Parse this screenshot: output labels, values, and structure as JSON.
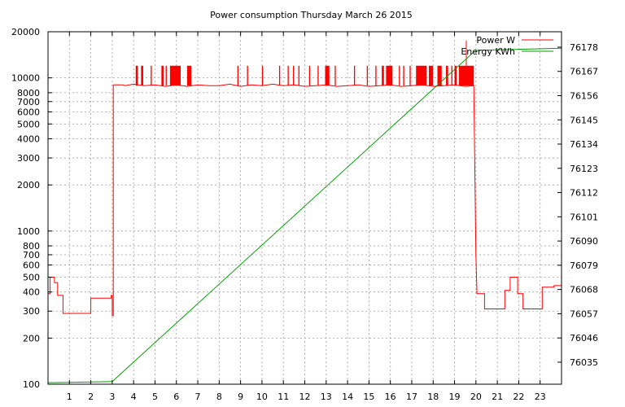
{
  "chart_data": {
    "type": "line",
    "title": "Power consumption Thursday March 26 2015",
    "xlim": [
      0,
      24
    ],
    "x_ticks": [
      1,
      2,
      3,
      4,
      5,
      6,
      7,
      8,
      9,
      10,
      11,
      12,
      13,
      14,
      15,
      16,
      17,
      18,
      19,
      20,
      21,
      22,
      23
    ],
    "y_scale": "log",
    "ylim": [
      100,
      20000
    ],
    "y_ticks": [
      100,
      200,
      300,
      400,
      500,
      600,
      700,
      800,
      1000,
      2000,
      3000,
      4000,
      5000,
      6000,
      7000,
      8000,
      10000,
      20000
    ],
    "y2lim": [
      76025,
      76185
    ],
    "y2_ticks": [
      76035,
      76046,
      76057,
      76068,
      76079,
      76090,
      76101,
      76112,
      76123,
      76134,
      76145,
      76156,
      76167,
      76178
    ],
    "grid": true,
    "legend_position": "top-right",
    "series": [
      {
        "name": "Power W",
        "color": "#ff0000",
        "axis": "left",
        "x": [
          0,
          0.1,
          0.1,
          0.3,
          0.3,
          0.45,
          0.45,
          0.7,
          0.7,
          2.0,
          2.0,
          2.95,
          2.95,
          3.0,
          3.0,
          3.05,
          3.05,
          3.5,
          3.6,
          4.0,
          4.5,
          5.0,
          5.5,
          6.0,
          6.5,
          7.0,
          7.5,
          8.0,
          8.5,
          9.0,
          9.5,
          10.0,
          10.5,
          11.0,
          11.5,
          12.0,
          12.5,
          13.0,
          13.5,
          14.0,
          14.5,
          15.0,
          15.5,
          16.0,
          16.5,
          17.0,
          17.5,
          18.0,
          18.5,
          19.0,
          19.5,
          19.9,
          20.0,
          20.05,
          20.05,
          20.4,
          20.4,
          21.35,
          21.35,
          21.6,
          21.6,
          21.95,
          21.95,
          22.2,
          22.2,
          23.1,
          23.1,
          23.65,
          23.65,
          24.0
        ],
        "values": [
          390,
          390,
          500,
          500,
          460,
          460,
          380,
          380,
          290,
          290,
          365,
          365,
          380,
          380,
          280,
          280,
          9000,
          9000,
          8900,
          9100,
          8900,
          9000,
          8800,
          9000,
          8800,
          9000,
          8900,
          8900,
          9100,
          8800,
          9000,
          8900,
          9100,
          8900,
          9000,
          8800,
          8900,
          9000,
          8800,
          8900,
          9000,
          8800,
          8900,
          9000,
          8800,
          8900,
          9000,
          8800,
          8900,
          9000,
          8800,
          8900,
          700,
          390,
          390,
          390,
          310,
          310,
          410,
          410,
          500,
          500,
          390,
          390,
          310,
          310,
          430,
          430,
          440,
          440
        ]
      },
      {
        "name": "Energy KWh",
        "color": "#00a000",
        "axis": "right",
        "x": [
          0,
          3.0,
          19.9,
          20.1,
          24
        ],
        "values": [
          76025.7,
          76026.2,
          76175.8,
          76176.6,
          76177.5
        ]
      }
    ],
    "power_spikes": [
      {
        "from": 4.1,
        "to": 4.2
      },
      {
        "from": 4.35,
        "to": 4.45
      },
      {
        "from": 4.8,
        "to": 4.85
      },
      {
        "from": 5.3,
        "to": 5.4
      },
      {
        "from": 5.5,
        "to": 5.55
      },
      {
        "from": 5.7,
        "to": 6.2
      },
      {
        "from": 6.5,
        "to": 6.7
      },
      {
        "from": 8.85,
        "to": 8.9
      },
      {
        "from": 9.3,
        "to": 9.35
      },
      {
        "from": 10.0,
        "to": 10.05
      },
      {
        "from": 10.8,
        "to": 10.85
      },
      {
        "from": 11.2,
        "to": 11.25
      },
      {
        "from": 11.45,
        "to": 11.5
      },
      {
        "from": 11.7,
        "to": 11.75
      },
      {
        "from": 12.2,
        "to": 12.25
      },
      {
        "from": 12.6,
        "to": 12.65
      },
      {
        "from": 12.95,
        "to": 13.15
      },
      {
        "from": 13.4,
        "to": 13.45
      },
      {
        "from": 14.3,
        "to": 14.35
      },
      {
        "from": 14.9,
        "to": 14.95
      },
      {
        "from": 15.3,
        "to": 15.35
      },
      {
        "from": 15.6,
        "to": 15.7
      },
      {
        "from": 15.8,
        "to": 16.1
      },
      {
        "from": 16.4,
        "to": 16.45
      },
      {
        "from": 16.6,
        "to": 16.65
      },
      {
        "from": 16.9,
        "to": 16.95
      },
      {
        "from": 17.2,
        "to": 17.7
      },
      {
        "from": 17.8,
        "to": 18.0
      },
      {
        "from": 18.2,
        "to": 18.4
      },
      {
        "from": 18.6,
        "to": 18.7
      },
      {
        "from": 18.85,
        "to": 18.9
      },
      {
        "from": 19.0,
        "to": 19.1
      },
      {
        "from": 19.2,
        "to": 19.9
      }
    ],
    "spike_value": 12000,
    "peak_marker": {
      "x": 19.55,
      "value": 17500
    }
  }
}
